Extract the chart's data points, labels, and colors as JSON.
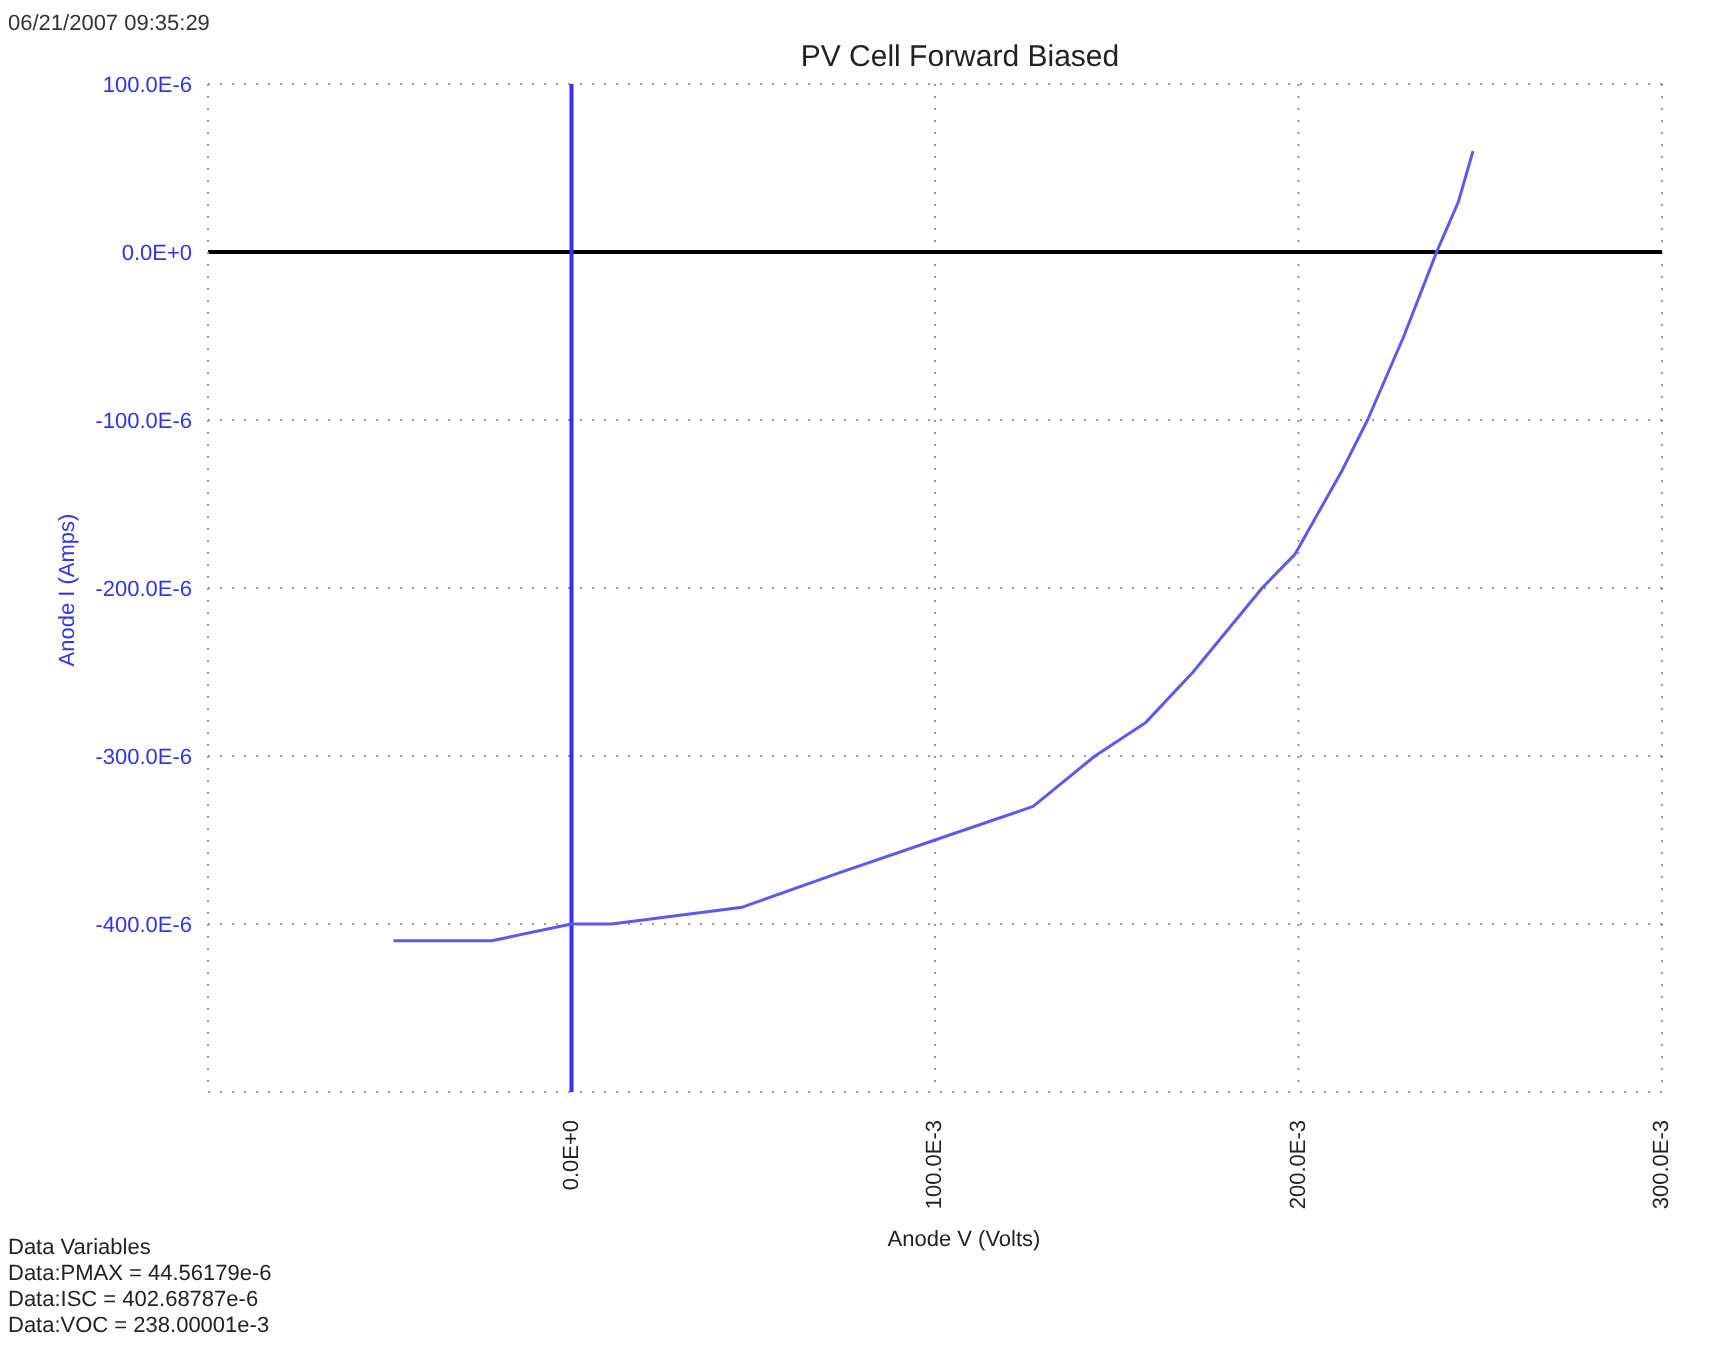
{
  "chart_data": {
    "type": "line",
    "title": "PV Cell Forward Biased",
    "xlabel": "Anode V (Volts)",
    "ylabel": "Anode I (Amps)",
    "annotations": [
      "06/21/2007 09:35:29",
      "Data Variables",
      "Data:PMAX = 44.56179e-6",
      "Data:ISC = 402.68787e-6",
      "Data:VOC = 238.00001e-3"
    ],
    "series": [
      {
        "color": "#5a5af0",
        "x": [
          -0.049,
          -0.022,
          0,
          0.011,
          0.047,
          0.073,
          0.1,
          0.127,
          0.144,
          0.158,
          0.171,
          0.19,
          0.199,
          0.212,
          0.219,
          0.229,
          0.238,
          0.244,
          0.248
        ],
        "values": [
          -0.00041,
          -0.00041,
          -0.0004,
          -0.0004,
          -0.00039,
          -0.00037,
          -0.00035,
          -0.00033,
          -0.0003,
          -0.00028,
          -0.00025,
          -0.0002,
          -0.00018,
          -0.00013,
          -0.0001,
          -5e-05,
          0,
          3e-05,
          6e-05
        ]
      }
    ],
    "xlim": [
      -0.1,
      0.3
    ],
    "xticks": [
      {
        "value": -0.1,
        "label": null
      },
      {
        "value": 0,
        "label": "0.0E+0"
      },
      {
        "value": 0.1,
        "label": "100.0E-3"
      },
      {
        "value": 0.2,
        "label": "200.0E-3"
      },
      {
        "value": 0.3,
        "label": "300.0E-3"
      }
    ],
    "ylim": [
      -0.0005,
      0.0001
    ],
    "yticks": [
      {
        "value": -0.0005,
        "label": null
      },
      {
        "value": -0.0004,
        "label": "-400.0E-6"
      },
      {
        "value": -0.0003,
        "label": "-300.0E-6"
      },
      {
        "value": -0.0002,
        "label": "-200.0E-6"
      },
      {
        "value": -0.0001,
        "label": "-100.0E-6"
      },
      {
        "value": 0,
        "label": "0.0E+0"
      },
      {
        "value": 0.0001,
        "label": "100.0E-6"
      }
    ],
    "ref_lines": [
      {
        "axis": "y",
        "value": 0,
        "color": "#000000"
      },
      {
        "axis": "x",
        "value": 0,
        "color": "#3333ee"
      }
    ],
    "grid": true,
    "marker": "none",
    "line_style": "solid"
  }
}
